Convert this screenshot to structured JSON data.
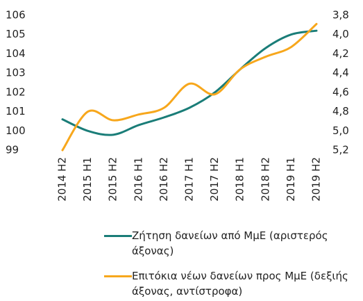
{
  "chart_data": {
    "type": "line",
    "categories": [
      "2014 H2",
      "2015 H1",
      "2015 H2",
      "2016 H1",
      "2016 H2",
      "2017 H1",
      "2017 H2",
      "2018 H1",
      "2018 H2",
      "2019 H1",
      "2019 H2"
    ],
    "series": [
      {
        "name": "Ζήτηση δανείων από ΜμΕ (αριστερός άξονας)",
        "color": "#1a7d78",
        "axis": "y",
        "values": [
          100.6,
          100.0,
          99.8,
          100.3,
          100.7,
          101.2,
          102.0,
          103.2,
          104.3,
          105.0,
          105.2
        ]
      },
      {
        "name": "Επιτόκια νέων δανείων προς ΜμΕ (δεξιής άξονας, αντίστροφα)",
        "color": "#f7a71c",
        "axis": "y2",
        "values": [
          5.2,
          4.8,
          4.89,
          4.83,
          4.76,
          4.51,
          4.62,
          4.36,
          4.23,
          4.13,
          3.89
        ]
      }
    ],
    "ylim": [
      99,
      106
    ],
    "yticks": [
      99,
      100,
      101,
      102,
      103,
      104,
      105,
      106
    ],
    "y2lim": [
      5.2,
      3.8
    ],
    "y2ticks": [
      {
        "value": 3.8,
        "label": "3,8"
      },
      {
        "value": 4.0,
        "label": "4,0"
      },
      {
        "value": 4.2,
        "label": "4,2"
      },
      {
        "value": 4.4,
        "label": "4,4"
      },
      {
        "value": 4.6,
        "label": "4,6"
      },
      {
        "value": 4.8,
        "label": "4,8"
      },
      {
        "value": 5.0,
        "label": "5,0"
      },
      {
        "value": 5.2,
        "label": "5,2"
      }
    ],
    "grid": false
  }
}
